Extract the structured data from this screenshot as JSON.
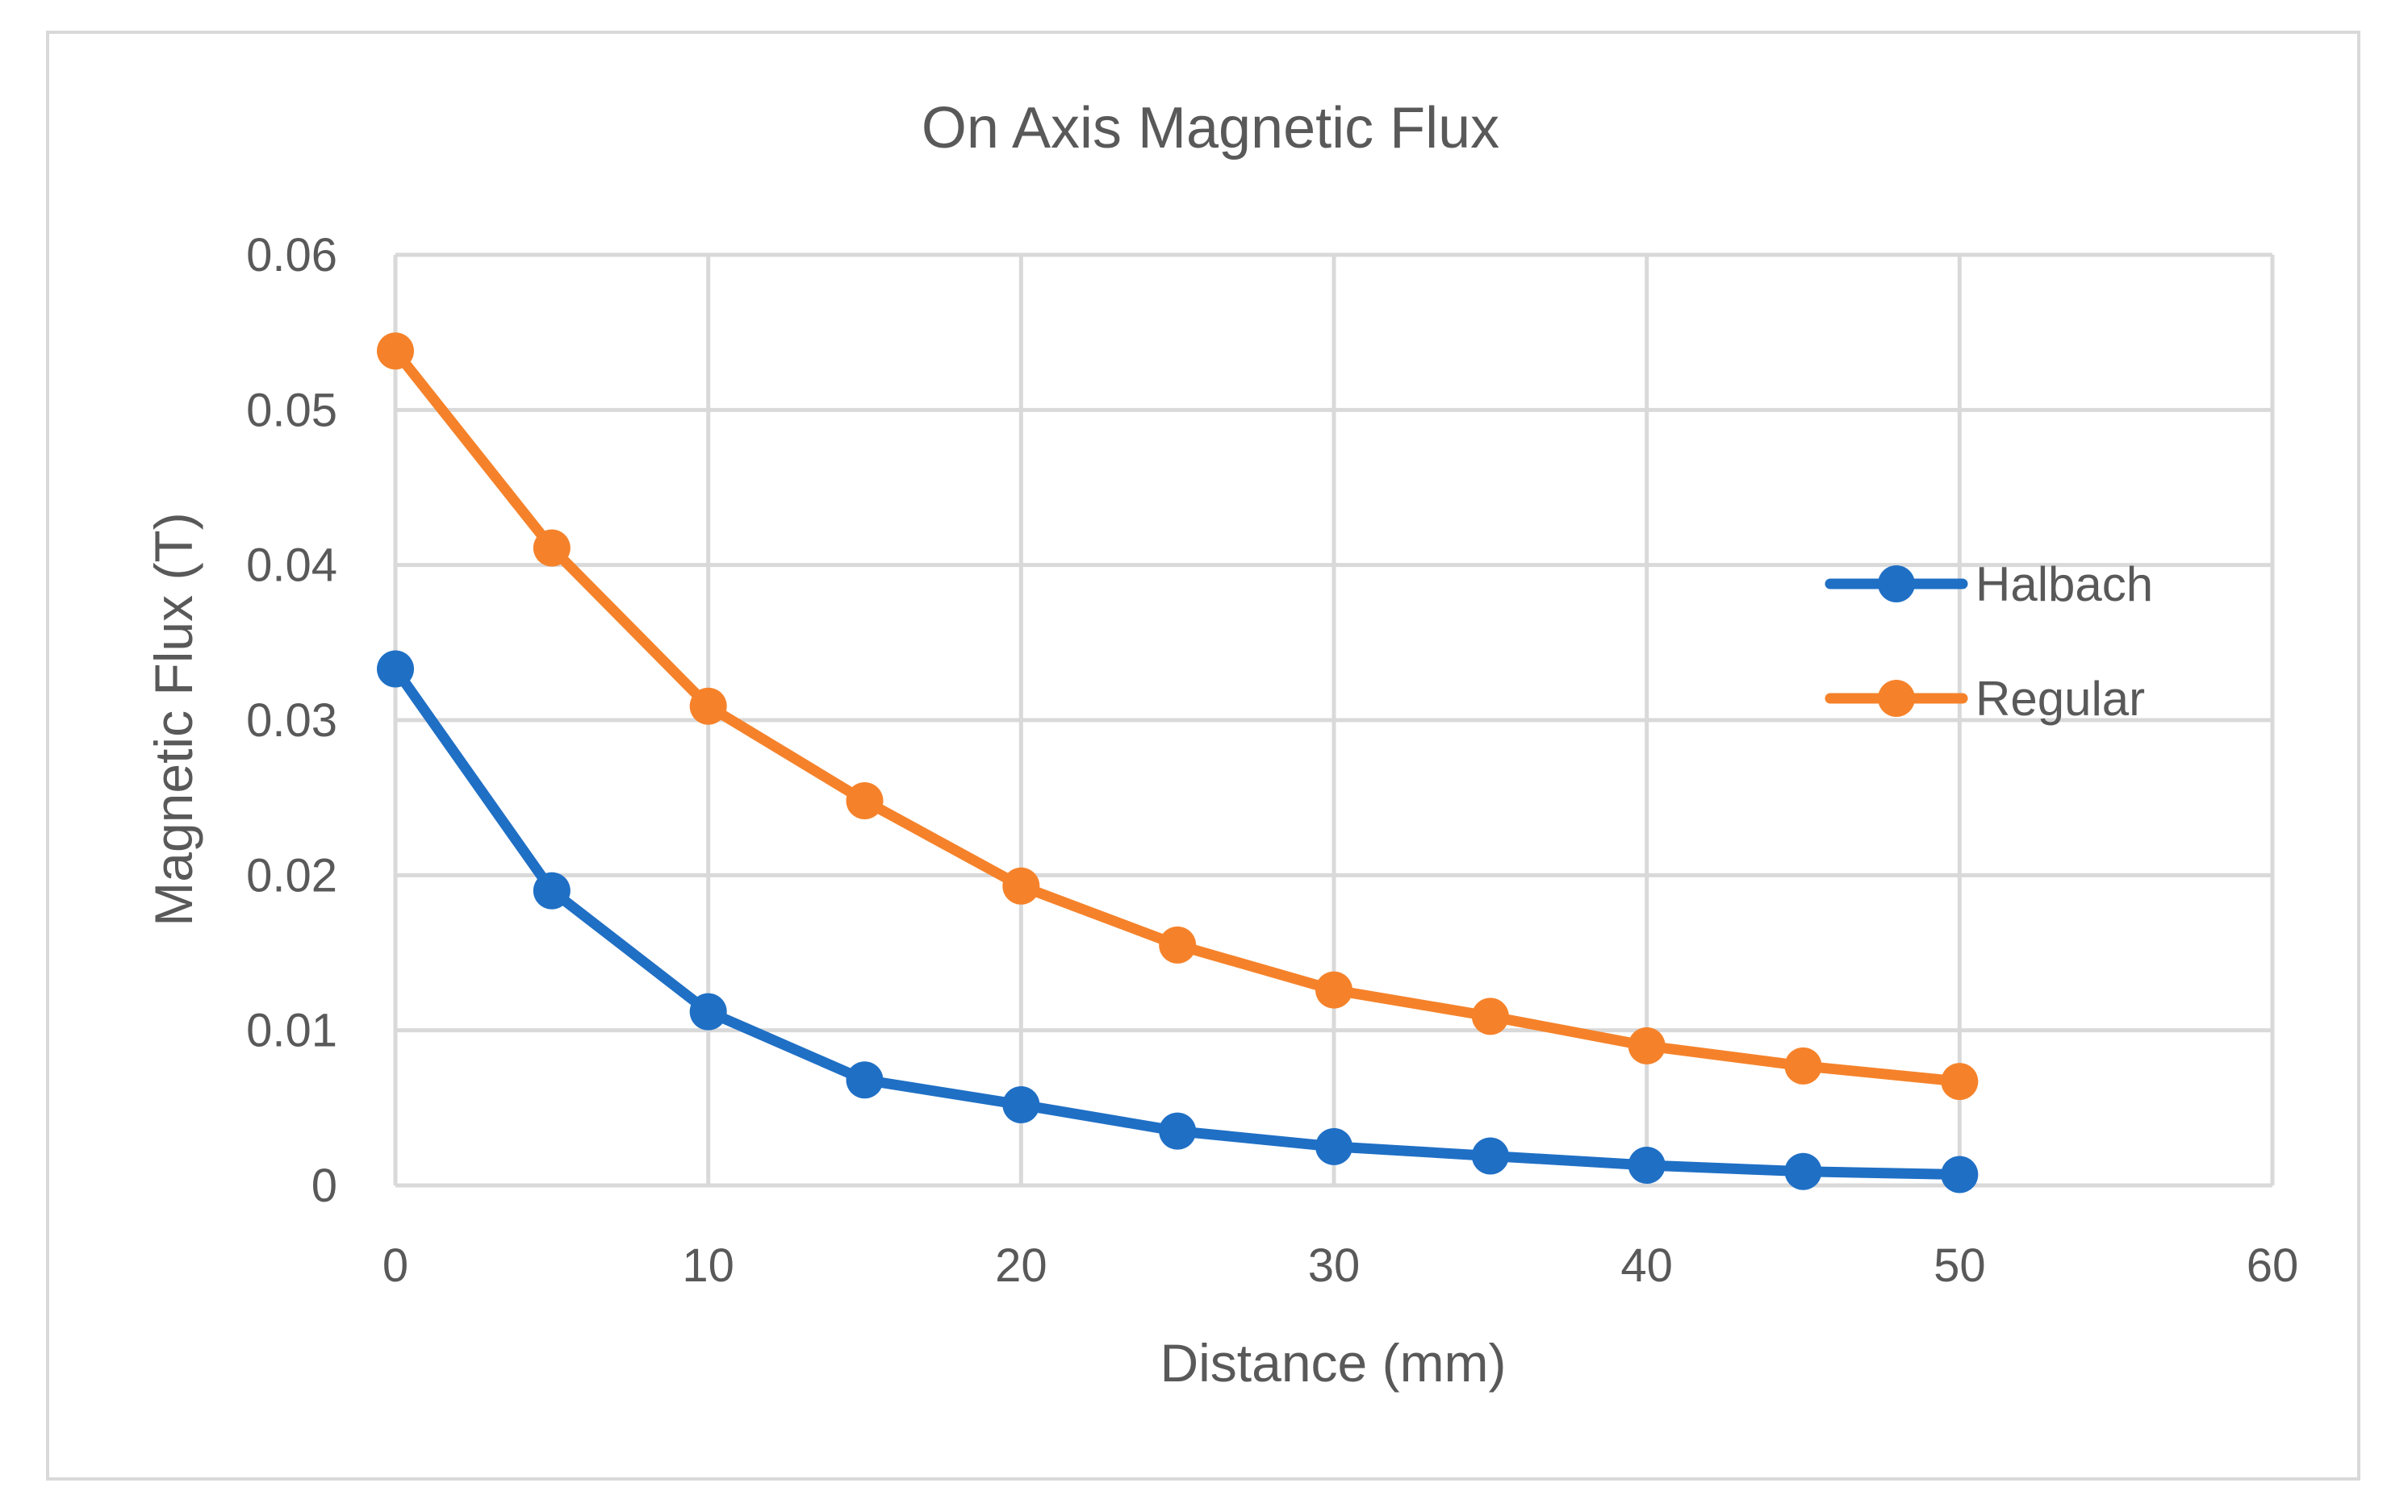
{
  "chart_data": {
    "type": "line",
    "title": "On Axis Magnetic Flux",
    "xlabel": "Distance (mm)",
    "ylabel": "Magnetic Flux (T)",
    "xlim": [
      0,
      60
    ],
    "ylim": [
      0,
      0.06
    ],
    "x_ticks": [
      "0",
      "10",
      "20",
      "30",
      "40",
      "50",
      "60"
    ],
    "y_ticks": [
      "0",
      "0.01",
      "0.02",
      "0.03",
      "0.04",
      "0.05",
      "0.06"
    ],
    "x_tick_values": [
      0,
      10,
      20,
      30,
      40,
      50,
      60
    ],
    "y_tick_values": [
      0,
      0.01,
      0.02,
      0.03,
      0.04,
      0.05,
      0.06
    ],
    "grid": true,
    "legend_position": "right",
    "x": [
      0,
      5,
      10,
      15,
      20,
      25,
      30,
      35,
      40,
      45,
      50
    ],
    "series": [
      {
        "name": "Halbach",
        "color": "#1f6fc5",
        "values": [
          0.0333,
          0.019,
          0.0112,
          0.0068,
          0.0052,
          0.0035,
          0.0025,
          0.0019,
          0.0013,
          0.0009,
          0.0007
        ]
      },
      {
        "name": "Regular",
        "color": "#f5822a",
        "values": [
          0.0538,
          0.0411,
          0.0309,
          0.0248,
          0.0193,
          0.0155,
          0.0126,
          0.0109,
          0.009,
          0.0077,
          0.0067
        ]
      }
    ]
  },
  "colors": {
    "grid": "#d9d9d9",
    "text": "#595959",
    "frame": "#d9d9d9"
  }
}
